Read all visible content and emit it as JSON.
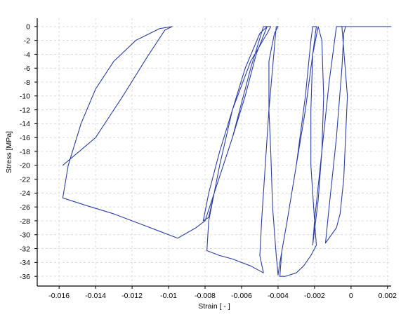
{
  "chart_data": {
    "type": "line",
    "title": "",
    "xlabel": "Strain [ - ]",
    "ylabel": "Stress [MPa]",
    "xlim": [
      -0.0172,
      0.0022
    ],
    "ylim": [
      -37.4,
      1.2
    ],
    "x_ticks": [
      -0.016,
      -0.014,
      -0.012,
      -0.01,
      -0.008,
      -0.006,
      -0.004,
      -0.002,
      0,
      0.002
    ],
    "x_tick_labels": [
      "-0.016",
      "-0.014",
      "-0.012",
      "-0.01",
      "-0.008",
      "-0.006",
      "-0.004",
      "-0.002",
      "0",
      "0.002"
    ],
    "y_ticks": [
      0,
      -2,
      -4,
      -6,
      -8,
      -10,
      -12,
      -14,
      -16,
      -18,
      -20,
      -22,
      -24,
      -26,
      -28,
      -30,
      -32,
      -34,
      -36
    ],
    "y_tick_labels": [
      "0",
      "-2",
      "-4",
      "-6",
      "-8",
      "-10",
      "-12",
      "-14",
      "-16",
      "-18",
      "-20",
      "-22",
      "-24",
      "-26",
      "-28",
      "-30",
      "-32",
      "-34",
      "-36"
    ],
    "grid": true,
    "line_color": "#2b3fa8",
    "series": [
      {
        "points": [
          [
            0.0022,
            0
          ],
          [
            0,
            0
          ],
          [
            -0.0005,
            0
          ],
          [
            -0.0002,
            -10
          ],
          [
            -0.0004,
            -22
          ],
          [
            -0.0006,
            -27
          ],
          [
            -0.0008,
            -29
          ],
          [
            -0.0014,
            -31.2
          ],
          [
            -0.0012,
            -26
          ],
          [
            -0.0008,
            -16
          ],
          [
            -0.0005,
            -6
          ],
          [
            -0.0004,
            -1
          ],
          [
            -0.0003,
            0
          ],
          [
            -0.0008,
            0
          ],
          [
            -0.0012,
            -8
          ],
          [
            -0.0016,
            -18
          ],
          [
            -0.002,
            -28
          ],
          [
            -0.0021,
            -31.5
          ],
          [
            -0.0018,
            -25
          ],
          [
            -0.0016,
            -18
          ],
          [
            -0.0015,
            -10
          ],
          [
            -0.0016,
            -2
          ],
          [
            -0.0018,
            0
          ],
          [
            -0.0018,
            0
          ],
          [
            -0.0021,
            -4
          ],
          [
            -0.0025,
            -12
          ],
          [
            -0.003,
            -20
          ],
          [
            -0.0035,
            -28
          ],
          [
            -0.0038,
            -32.5
          ],
          [
            -0.0039,
            -36
          ],
          [
            -0.0036,
            -36
          ],
          [
            -0.003,
            -35.5
          ],
          [
            -0.0026,
            -34.5
          ],
          [
            -0.0022,
            -33
          ],
          [
            -0.0019,
            -31.5
          ],
          [
            -0.002,
            -28
          ],
          [
            -0.0022,
            -20
          ],
          [
            -0.0022,
            -12
          ],
          [
            -0.0021,
            -4
          ],
          [
            -0.0019,
            0
          ],
          [
            -0.0021,
            0
          ],
          [
            -0.0022,
            -2
          ],
          [
            -0.0025,
            -10
          ],
          [
            -0.003,
            -20
          ],
          [
            -0.0035,
            -28
          ],
          [
            -0.0039,
            -34
          ],
          [
            -0.004,
            -35.8
          ],
          [
            -0.0041,
            -33
          ],
          [
            -0.0043,
            -26
          ],
          [
            -0.0044,
            -18
          ],
          [
            -0.0045,
            -12
          ],
          [
            -0.0045,
            -5
          ],
          [
            -0.0042,
            -1
          ],
          [
            -0.004,
            0
          ],
          [
            -0.0041,
            0
          ],
          [
            -0.0043,
            -6
          ],
          [
            -0.0045,
            -12
          ],
          [
            -0.0047,
            -20
          ],
          [
            -0.0049,
            -28
          ],
          [
            -0.005,
            -33
          ],
          [
            -0.0048,
            -35.5
          ],
          [
            -0.0055,
            -34.5
          ],
          [
            -0.0065,
            -33.5
          ],
          [
            -0.0072,
            -33
          ],
          [
            -0.0079,
            -32.3
          ],
          [
            -0.0078,
            -28
          ],
          [
            -0.0072,
            -20
          ],
          [
            -0.0065,
            -12
          ],
          [
            -0.0055,
            -5
          ],
          [
            -0.0046,
            -1
          ],
          [
            -0.0044,
            0
          ],
          [
            -0.0046,
            0
          ],
          [
            -0.0052,
            -4
          ],
          [
            -0.0058,
            -10
          ],
          [
            -0.0065,
            -16
          ],
          [
            -0.007,
            -20
          ],
          [
            -0.0075,
            -24
          ],
          [
            -0.0078,
            -27.5
          ],
          [
            -0.0081,
            -28
          ],
          [
            -0.0078,
            -24
          ],
          [
            -0.0072,
            -18
          ],
          [
            -0.0065,
            -12
          ],
          [
            -0.0058,
            -6
          ],
          [
            -0.005,
            -1
          ],
          [
            -0.0046,
            0
          ],
          [
            -0.0048,
            0
          ],
          [
            -0.0055,
            -6
          ],
          [
            -0.0065,
            -16
          ],
          [
            -0.0075,
            -24
          ],
          [
            -0.008,
            -28
          ],
          [
            -0.0085,
            -29
          ],
          [
            -0.0095,
            -30.5
          ],
          [
            -0.0105,
            -29.5
          ],
          [
            -0.0115,
            -28.5
          ],
          [
            -0.013,
            -27
          ],
          [
            -0.0145,
            -25.8
          ],
          [
            -0.0158,
            -24.7
          ],
          [
            -0.0155,
            -20
          ],
          [
            -0.0148,
            -14
          ],
          [
            -0.014,
            -9
          ],
          [
            -0.013,
            -5
          ],
          [
            -0.0118,
            -2
          ],
          [
            -0.0105,
            -0.3
          ],
          [
            -0.0098,
            0
          ],
          [
            -0.0102,
            -0.5
          ],
          [
            -0.0112,
            -4.5
          ],
          [
            -0.0125,
            -10
          ],
          [
            -0.014,
            -16
          ],
          [
            -0.0158,
            -20
          ]
        ]
      }
    ]
  }
}
